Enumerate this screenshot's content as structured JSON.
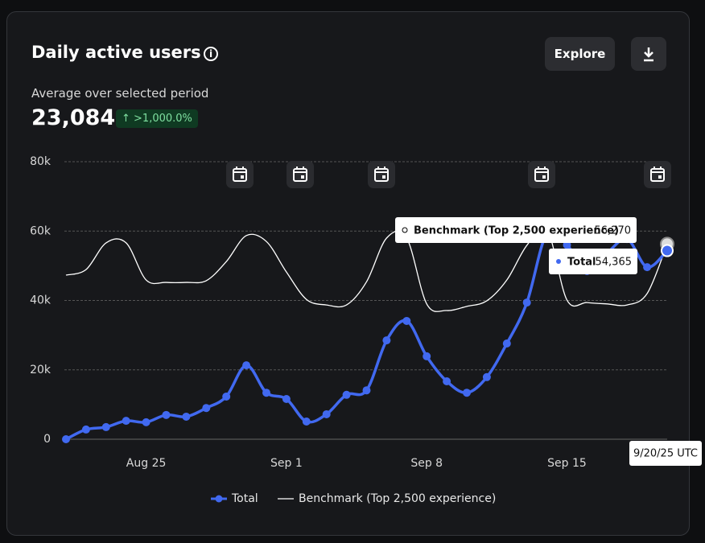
{
  "header": {
    "title": "Daily active users",
    "button": "Explore",
    "subtitle": "Average over selected period",
    "metric": "23,084",
    "change": ">1,000.0%"
  },
  "chart_data": {
    "type": "line",
    "x": [
      "Aug 21",
      "Aug 22",
      "Aug 23",
      "Aug 24",
      "Aug 25",
      "Aug 26",
      "Aug 27",
      "Aug 28",
      "Aug 29",
      "Aug 30",
      "Aug 31",
      "Sep 1",
      "Sep 2",
      "Sep 3",
      "Sep 4",
      "Sep 5",
      "Sep 6",
      "Sep 7",
      "Sep 8",
      "Sep 9",
      "Sep 10",
      "Sep 11",
      "Sep 12",
      "Sep 13",
      "Sep 14",
      "Sep 15",
      "Sep 16",
      "Sep 17",
      "Sep 18",
      "Sep 19",
      "Sep 20"
    ],
    "xticks": [
      "Aug 25",
      "Sep 1",
      "Sep 8",
      "Sep 15"
    ],
    "ylim": [
      0,
      80000
    ],
    "yticks": [
      0,
      {
        "value": 20000,
        "label": "20k"
      },
      {
        "value": 40000,
        "label": "40k"
      },
      {
        "value": 60000,
        "label": "60k"
      },
      {
        "value": 80000,
        "label": "80k"
      }
    ],
    "grid": true,
    "series": [
      {
        "name": "Total",
        "color": "#4169f0",
        "markers": true,
        "values": [
          0,
          2800,
          3500,
          5300,
          4900,
          7000,
          6500,
          9000,
          12300,
          21300,
          13400,
          11600,
          5100,
          7200,
          12800,
          14100,
          28500,
          34100,
          23900,
          16700,
          13400,
          17900,
          27600,
          39400,
          59400,
          56000,
          48500,
          53600,
          57700,
          49600,
          54365
        ],
        "value_labels": [
          null,
          null,
          null,
          null,
          null,
          null,
          null,
          null,
          null,
          null,
          null,
          null,
          null,
          null,
          null,
          null,
          null,
          null,
          null,
          null,
          null,
          null,
          null,
          null,
          null,
          null,
          null,
          null,
          null,
          null,
          "54,365"
        ]
      },
      {
        "name": "Benchmark (Top 2,500 experience)",
        "color": "#ffffff",
        "markers": false,
        "values": [
          47300,
          48900,
          56600,
          56600,
          45900,
          45200,
          45200,
          45700,
          51200,
          58700,
          57000,
          48200,
          40300,
          38700,
          38700,
          45400,
          58000,
          58000,
          39000,
          37100,
          38300,
          39900,
          45900,
          55900,
          60500,
          40100,
          39400,
          39000,
          38700,
          42000,
          56270
        ],
        "value_labels": [
          null,
          null,
          null,
          null,
          null,
          null,
          null,
          null,
          null,
          null,
          null,
          null,
          null,
          null,
          null,
          null,
          null,
          null,
          null,
          null,
          null,
          null,
          null,
          null,
          null,
          null,
          null,
          null,
          null,
          null,
          "56,270"
        ]
      }
    ],
    "tooltip_date": "9/20/25 UTC"
  }
}
